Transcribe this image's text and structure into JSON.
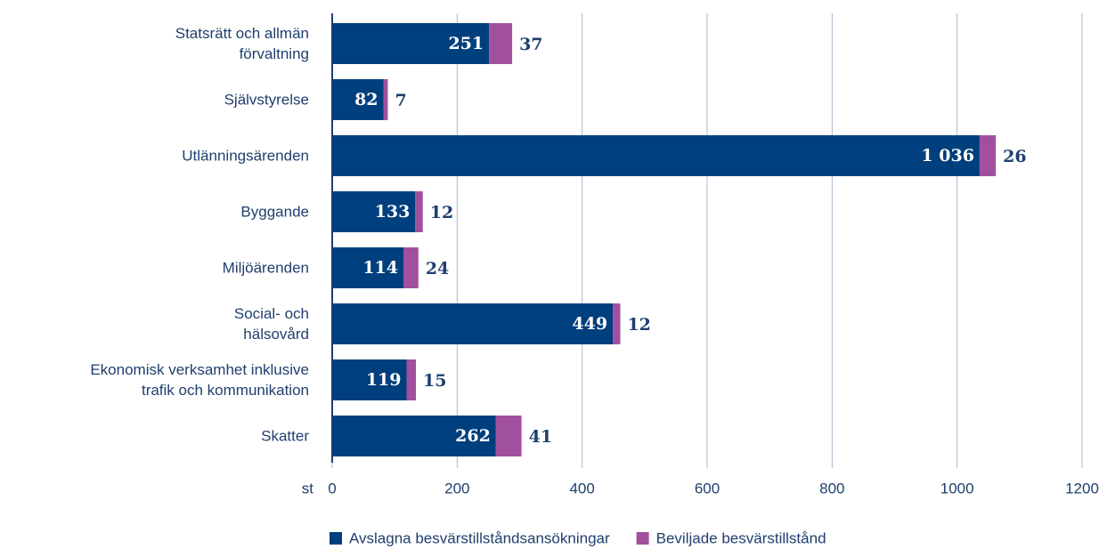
{
  "chart_data": {
    "type": "stacked_barh",
    "categories": [
      "Statsrätt och allmän\nförvaltning",
      "Självstyrelse",
      "Utlänningsärenden",
      "Byggande",
      "Miljöärenden",
      "Social- och\nhälsovård",
      "Ekonomisk verksamhet inklusive\ntrafik och kommunikation",
      "Skatter"
    ],
    "series": [
      {
        "name": "Avslagna besvärstillståndsansökningar",
        "color": "#003f7d",
        "values": [
          251,
          82,
          1036,
          133,
          114,
          449,
          119,
          262
        ],
        "value_labels": [
          "251",
          "82",
          "1 036",
          "133",
          "114",
          "449",
          "119",
          "262"
        ]
      },
      {
        "name": "Beviljade besvärstillstånd",
        "color": "#a1509f",
        "values": [
          37,
          7,
          26,
          12,
          24,
          12,
          15,
          41
        ]
      }
    ],
    "x_label": "st",
    "xlim": [
      0,
      1200
    ],
    "xticks": [
      0,
      200,
      400,
      600,
      800,
      1000,
      1200
    ],
    "grid": true,
    "legend": "bottom"
  }
}
